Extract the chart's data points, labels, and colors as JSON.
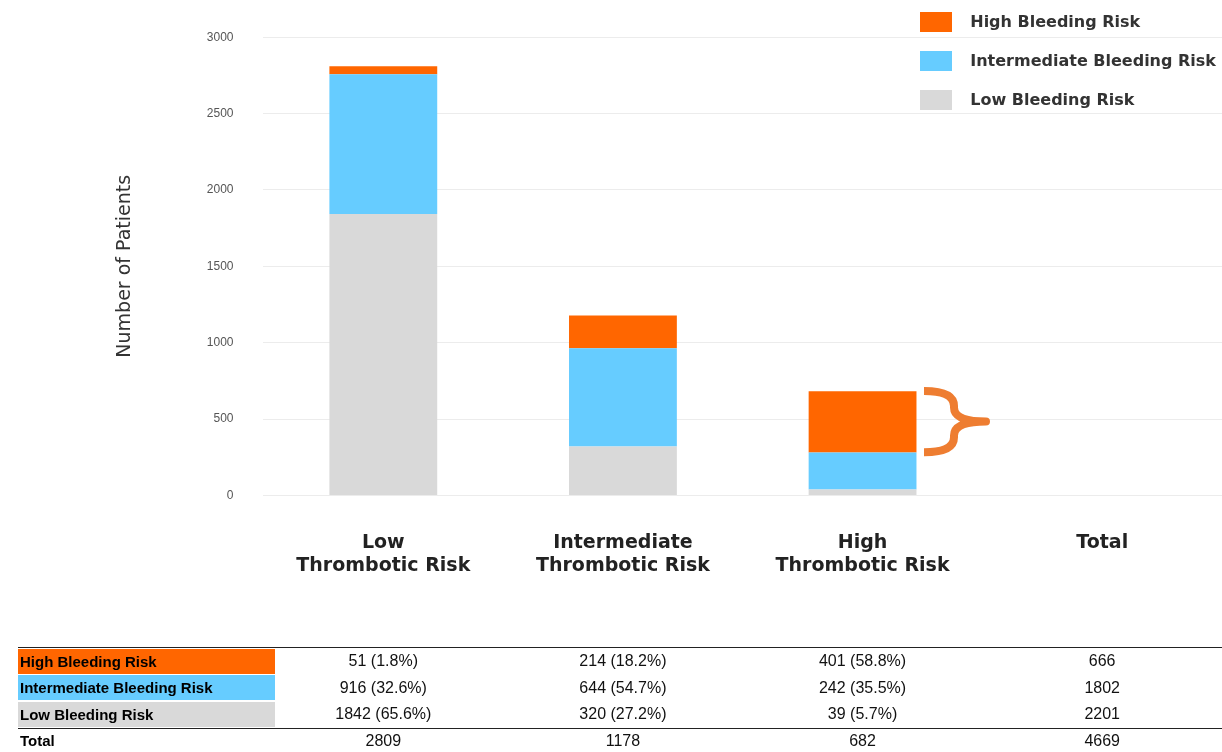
{
  "chart_data": {
    "type": "bar",
    "stacked": true,
    "ylabel": "Number of Patients",
    "categories": [
      "Low Thrombotic Risk",
      "Intermediate Thrombotic Risk",
      "High Thrombotic Risk",
      "Total"
    ],
    "series": [
      {
        "name": "Low Bleeding Risk",
        "color": "#d9d9d9",
        "values": [
          1842,
          320,
          39,
          null
        ],
        "value_labels": [
          "1842 (65.6%)",
          "320 (27.2%)",
          "39 (5.7%)",
          "2201"
        ]
      },
      {
        "name": "Intermediate Bleeding Risk",
        "color": "#66ccff",
        "values": [
          916,
          644,
          242,
          null
        ],
        "value_labels": [
          "916 (32.6%)",
          "644 (54.7%)",
          "242 (35.5%)",
          "1802"
        ]
      },
      {
        "name": "High Bleeding Risk",
        "color": "#ff6600",
        "values": [
          51,
          214,
          401,
          null
        ],
        "value_labels": [
          "51 (1.8%)",
          "214 (18.2%)",
          "401 (58.8%)",
          "666"
        ]
      }
    ],
    "annotations": [
      "Total",
      "2809",
      "1178",
      "682",
      "4669"
    ],
    "ylim": [
      0,
      3000
    ],
    "yticks": [
      0,
      500,
      1000,
      1500,
      2000,
      2500,
      3000
    ],
    "grid": "y",
    "legend": "top right"
  }
}
